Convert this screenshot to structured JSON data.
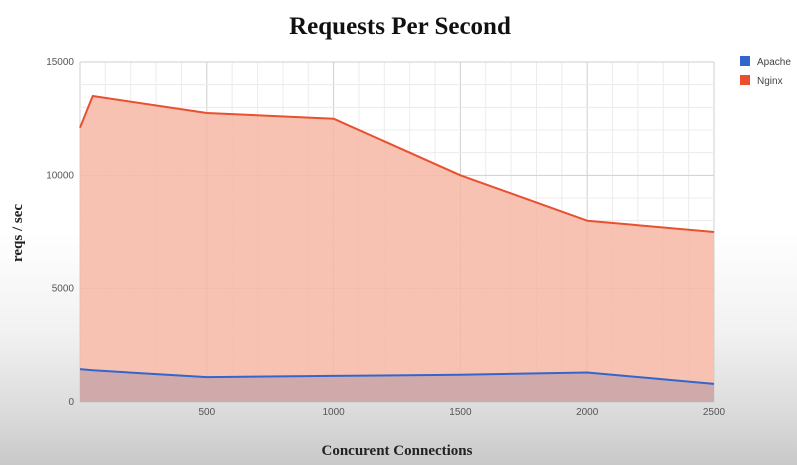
{
  "chart_data": {
    "type": "area",
    "title": "Requests Per Second",
    "xlabel": "Concurent Connections",
    "ylabel": "reqs / sec",
    "x": [
      0,
      50,
      500,
      1000,
      1500,
      2000,
      2500
    ],
    "xlim": [
      0,
      2500
    ],
    "ylim": [
      0,
      15000
    ],
    "xticks": [
      500,
      1000,
      1500,
      2000,
      2500
    ],
    "yticks": [
      0,
      5000,
      10000,
      15000
    ],
    "grid": true,
    "legend_position": "top-right",
    "series": [
      {
        "name": "Nginx",
        "color": "#e8502f",
        "fill": "#f7b7a6",
        "values": [
          12100,
          13500,
          12750,
          12500,
          10000,
          8000,
          7500
        ]
      },
      {
        "name": "Apache",
        "color": "#3366cc",
        "fill": "#c9a6a8",
        "values": [
          1450,
          1400,
          1100,
          1150,
          1200,
          1300,
          800
        ]
      }
    ]
  }
}
